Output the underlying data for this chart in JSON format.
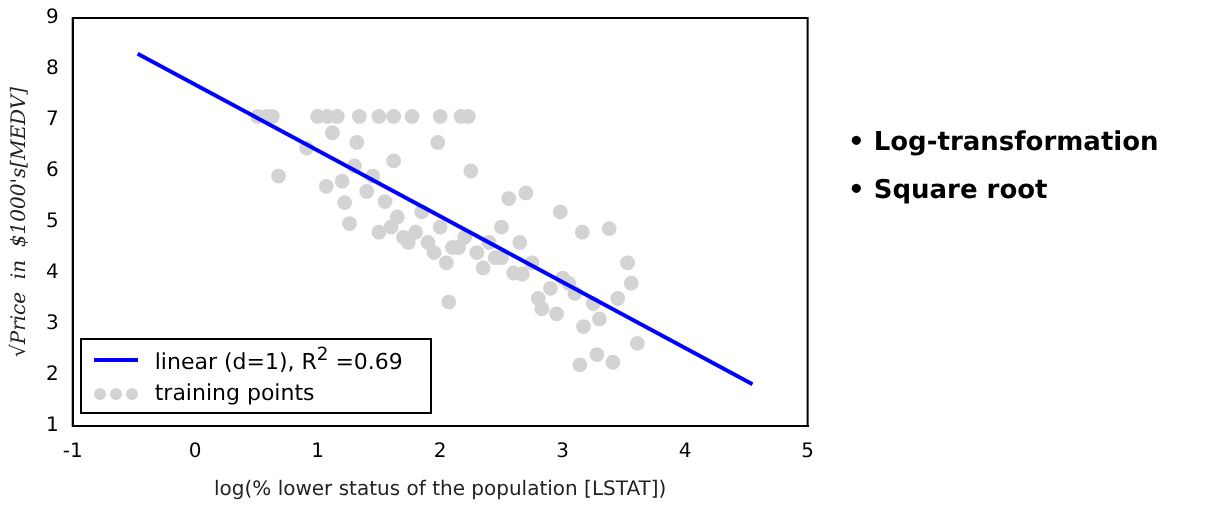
{
  "chart_data": {
    "type": "scatter",
    "xlabel": "log(% lower status of the population [LSTAT])",
    "ylabel": "√Price  in  $1000's[MEDV]",
    "xlim": [
      -1,
      5
    ],
    "xticks": [
      -1,
      0,
      1,
      2,
      3,
      4,
      5
    ],
    "ylim": [
      1,
      9
    ],
    "yticks": [
      1,
      2,
      3,
      4,
      5,
      6,
      7,
      8,
      9
    ],
    "grid": false,
    "legend": "bottom left",
    "annotations": [
      "• Log-transformation",
      "• Square root"
    ],
    "series": [
      {
        "name": "linear (d=1), R$^{2}$ =0.69",
        "type": "line",
        "color": "#0000ff",
        "x": [
          -0.47,
          4.55
        ],
        "values": [
          8.3,
          1.82
        ]
      },
      {
        "name": "training points",
        "marker": "circle",
        "color": "#d3d3d3",
        "x": [
          0.51,
          0.58,
          0.63,
          1.0,
          1.08,
          1.16,
          1.34,
          1.5,
          1.62,
          1.77,
          2.0,
          2.17,
          2.23,
          0.68,
          0.91,
          1.12,
          1.32,
          1.98,
          1.07,
          1.26,
          1.22,
          1.62,
          2.25,
          2.56,
          2.7,
          2.98,
          3.38,
          3.16,
          2.07,
          3.14,
          3.41,
          3.28,
          3.17,
          3.61,
          3.56,
          3.53,
          2.83,
          2.67,
          1.74,
          1.5,
          1.6,
          1.7,
          1.8,
          1.9,
          2.0,
          2.1,
          2.2,
          2.3,
          2.4,
          2.5,
          1.55,
          1.65,
          1.85,
          1.95,
          2.05,
          2.15,
          2.35,
          2.45,
          2.6,
          2.75,
          2.9,
          3.0,
          3.1,
          3.25,
          2.8,
          2.95,
          3.05,
          3.3,
          1.4,
          1.45,
          1.3,
          1.2,
          2.5,
          2.65,
          3.45
        ],
        "values": [
          7.07,
          7.07,
          7.07,
          7.07,
          7.07,
          7.07,
          7.07,
          7.07,
          7.07,
          7.07,
          7.07,
          7.07,
          7.07,
          5.9,
          6.45,
          6.75,
          6.56,
          6.56,
          5.7,
          4.97,
          5.38,
          6.2,
          6.0,
          5.46,
          5.57,
          5.2,
          4.87,
          4.8,
          3.43,
          2.2,
          2.25,
          2.4,
          2.95,
          2.62,
          3.8,
          4.2,
          3.3,
          3.98,
          4.6,
          4.8,
          4.9,
          4.7,
          4.8,
          4.6,
          4.9,
          4.5,
          4.7,
          4.4,
          4.6,
          4.3,
          5.4,
          5.1,
          5.2,
          4.4,
          4.2,
          4.5,
          4.1,
          4.3,
          4.0,
          4.2,
          3.7,
          3.9,
          3.6,
          3.4,
          3.5,
          3.2,
          3.8,
          3.1,
          5.6,
          5.9,
          6.1,
          5.8,
          4.9,
          4.6,
          3.5
        ]
      }
    ]
  }
}
